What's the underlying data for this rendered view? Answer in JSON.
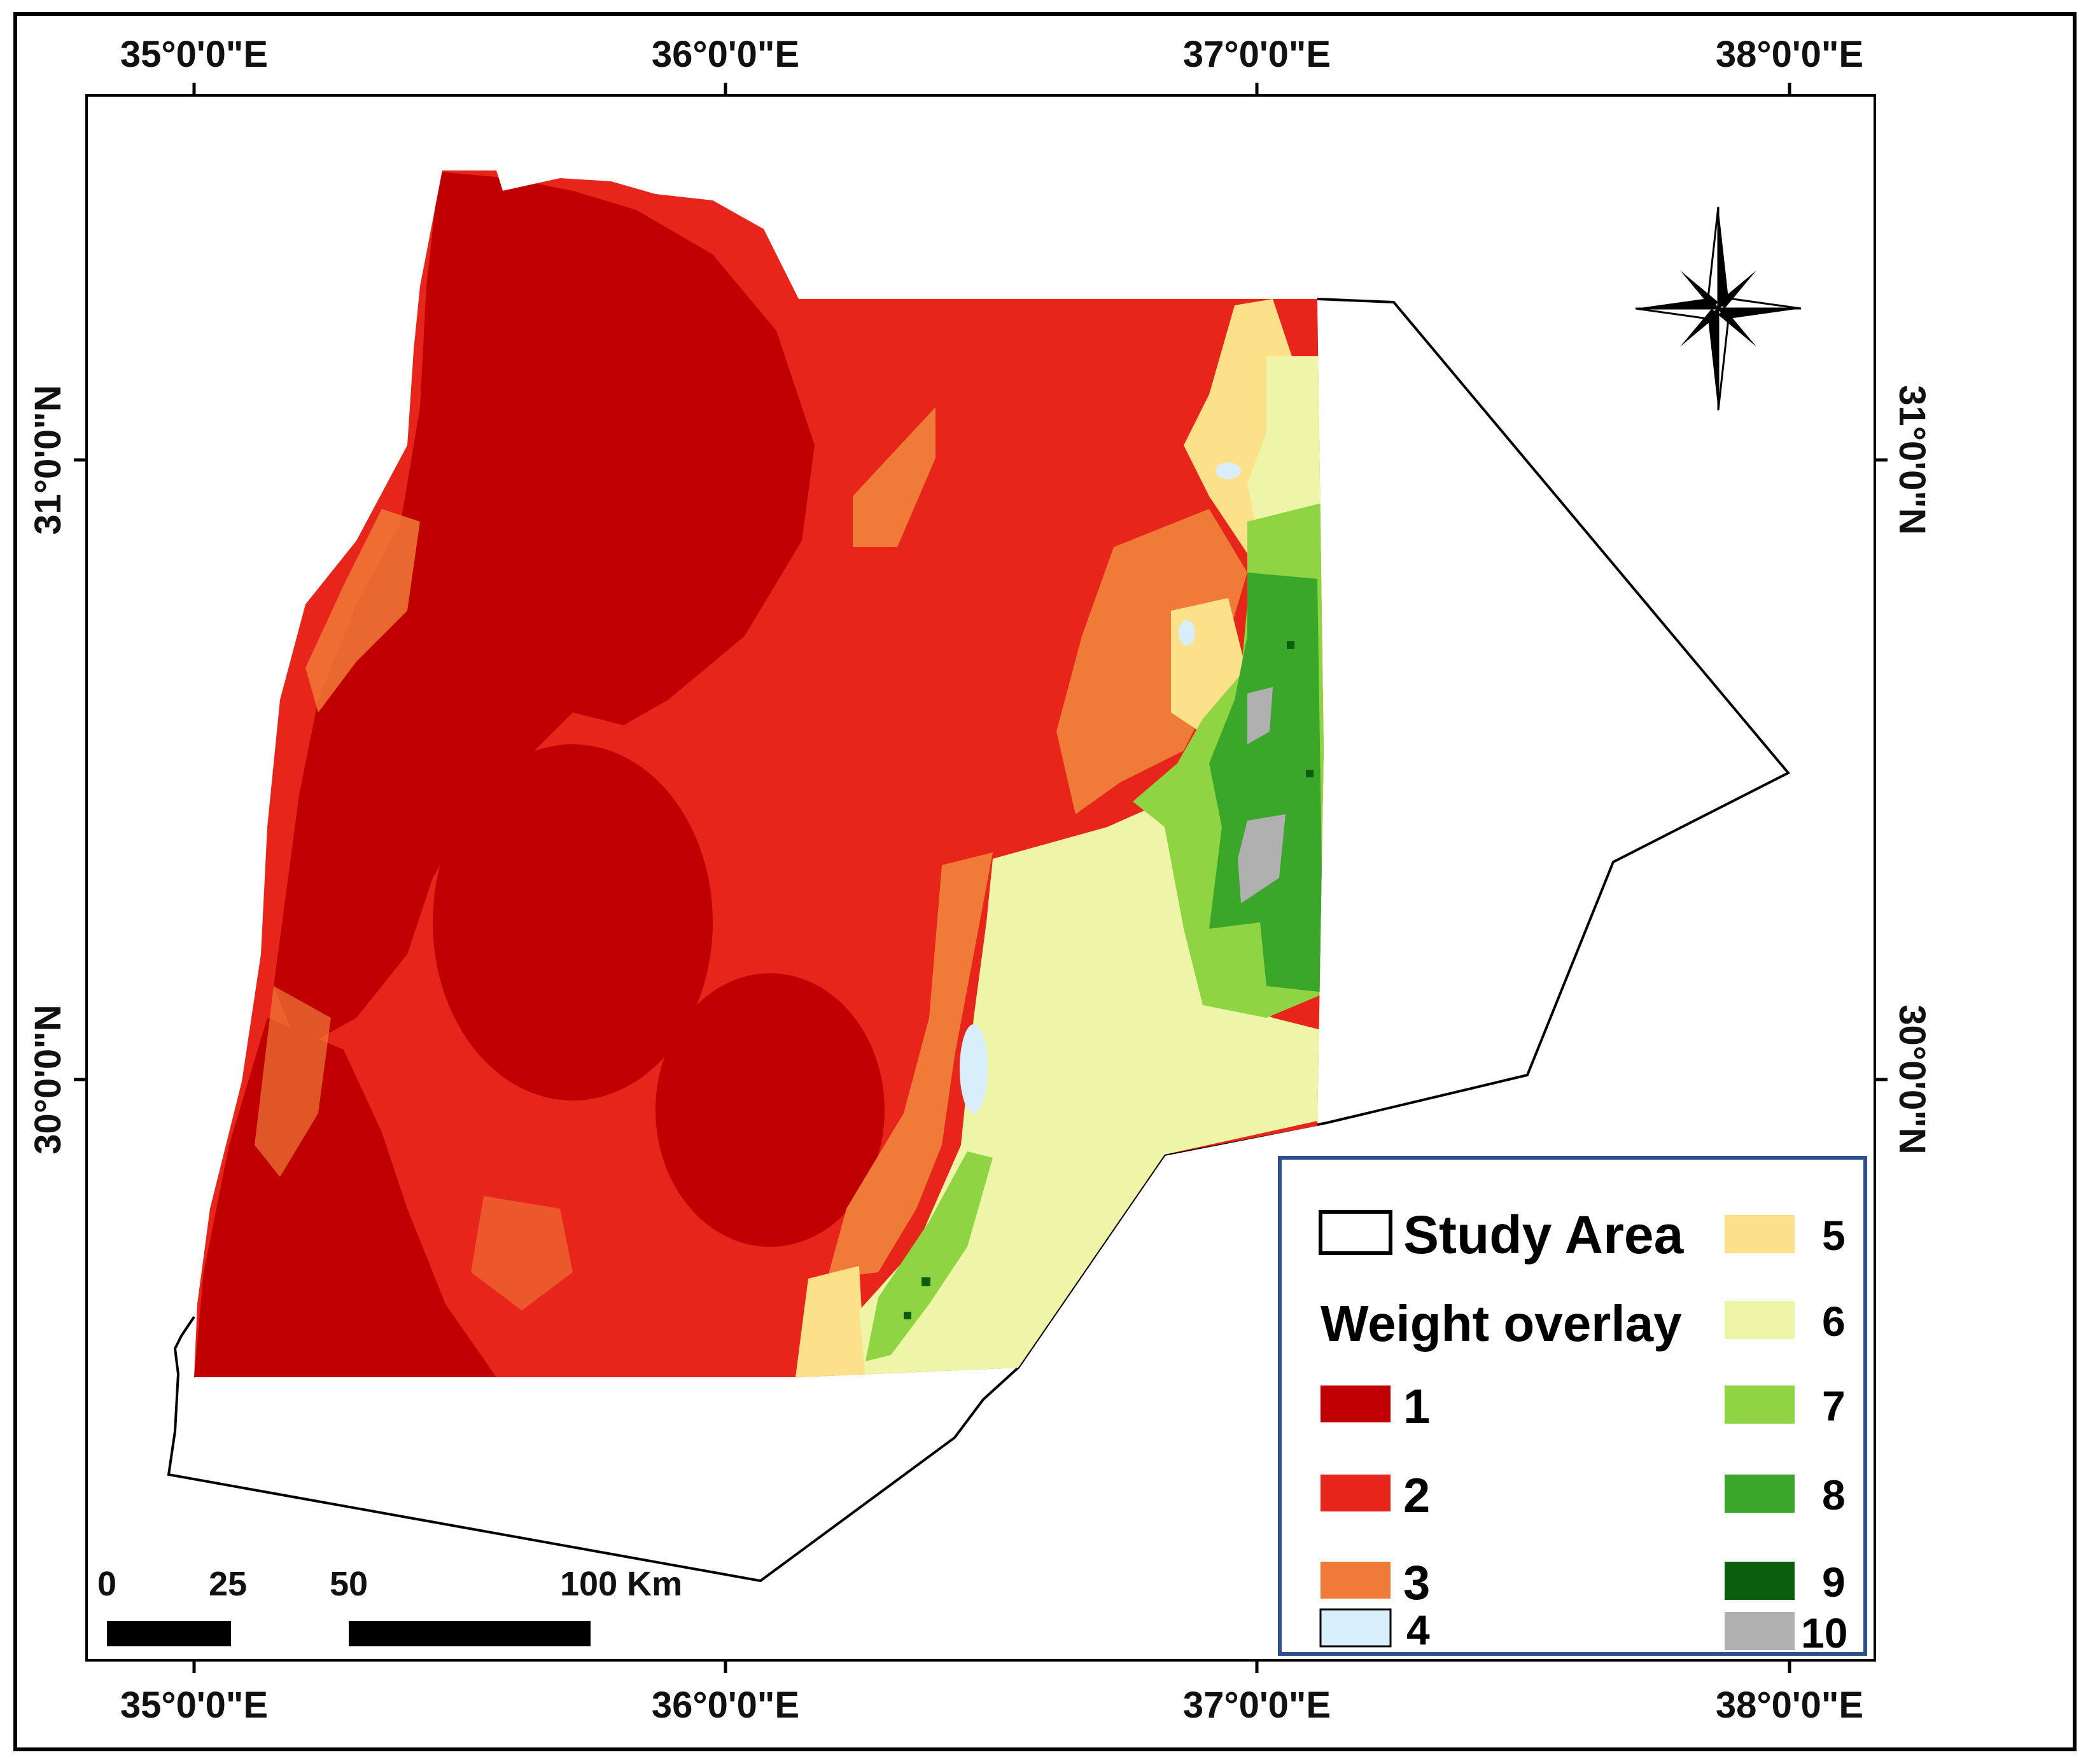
{
  "map": {
    "top_coords": [
      "35°0'0\"E",
      "36°0'0\"E",
      "37°0'0\"E",
      "38°0'0\"E"
    ],
    "bottom_coords": [
      "35°0'0\"E",
      "36°0'0\"E",
      "37°0'0\"E",
      "38°0'0\"E"
    ],
    "left_coords": [
      "31°0'0\"N",
      "30°0'0\"N"
    ],
    "right_coords": [
      "31°0'0\"N",
      "30°0'0\"N"
    ],
    "north_arrow": "compass-rose-icon"
  },
  "scale_bar": {
    "labels": [
      "0",
      "25",
      "50",
      "100 Km"
    ]
  },
  "legend": {
    "study_area_label": "Study Area",
    "overlay_title": "Weight overlay",
    "classes": [
      {
        "label": "1",
        "color": "#c00000"
      },
      {
        "label": "2",
        "color": "#e8251a"
      },
      {
        "label": "3",
        "color": "#f07a38"
      },
      {
        "label": "4",
        "color": "#d8eefa"
      },
      {
        "label": "5",
        "color": "#fde08a"
      },
      {
        "label": "6",
        "color": "#eef5a8"
      },
      {
        "label": "7",
        "color": "#8fd443"
      },
      {
        "label": "8",
        "color": "#3aa62a"
      },
      {
        "label": "9",
        "color": "#0b5e0b"
      },
      {
        "label": "10",
        "color": "#b0b0b0"
      }
    ],
    "border_color": "#2f4f8f"
  }
}
